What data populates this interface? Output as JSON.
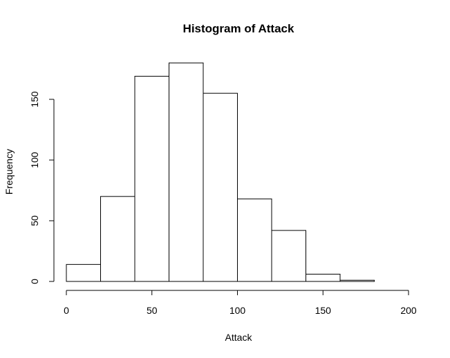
{
  "chart_data": {
    "type": "bar",
    "title": "Histogram of Attack",
    "xlabel": "Attack",
    "ylabel": "Frequency",
    "bins": [
      {
        "start": 0,
        "end": 20,
        "count": 14
      },
      {
        "start": 20,
        "end": 40,
        "count": 70
      },
      {
        "start": 40,
        "end": 60,
        "count": 169
      },
      {
        "start": 60,
        "end": 80,
        "count": 180
      },
      {
        "start": 80,
        "end": 100,
        "count": 155
      },
      {
        "start": 100,
        "end": 120,
        "count": 68
      },
      {
        "start": 120,
        "end": 140,
        "count": 42
      },
      {
        "start": 140,
        "end": 160,
        "count": 6
      },
      {
        "start": 160,
        "end": 180,
        "count": 1
      }
    ],
    "xlim": [
      0,
      200
    ],
    "ylim": [
      0,
      180
    ],
    "xticks": [
      0,
      50,
      100,
      150,
      200
    ],
    "yticks": [
      0,
      50,
      100,
      150
    ],
    "grid": false,
    "colors": {
      "bar_fill": "#ffffff",
      "bar_stroke": "#000000"
    }
  }
}
